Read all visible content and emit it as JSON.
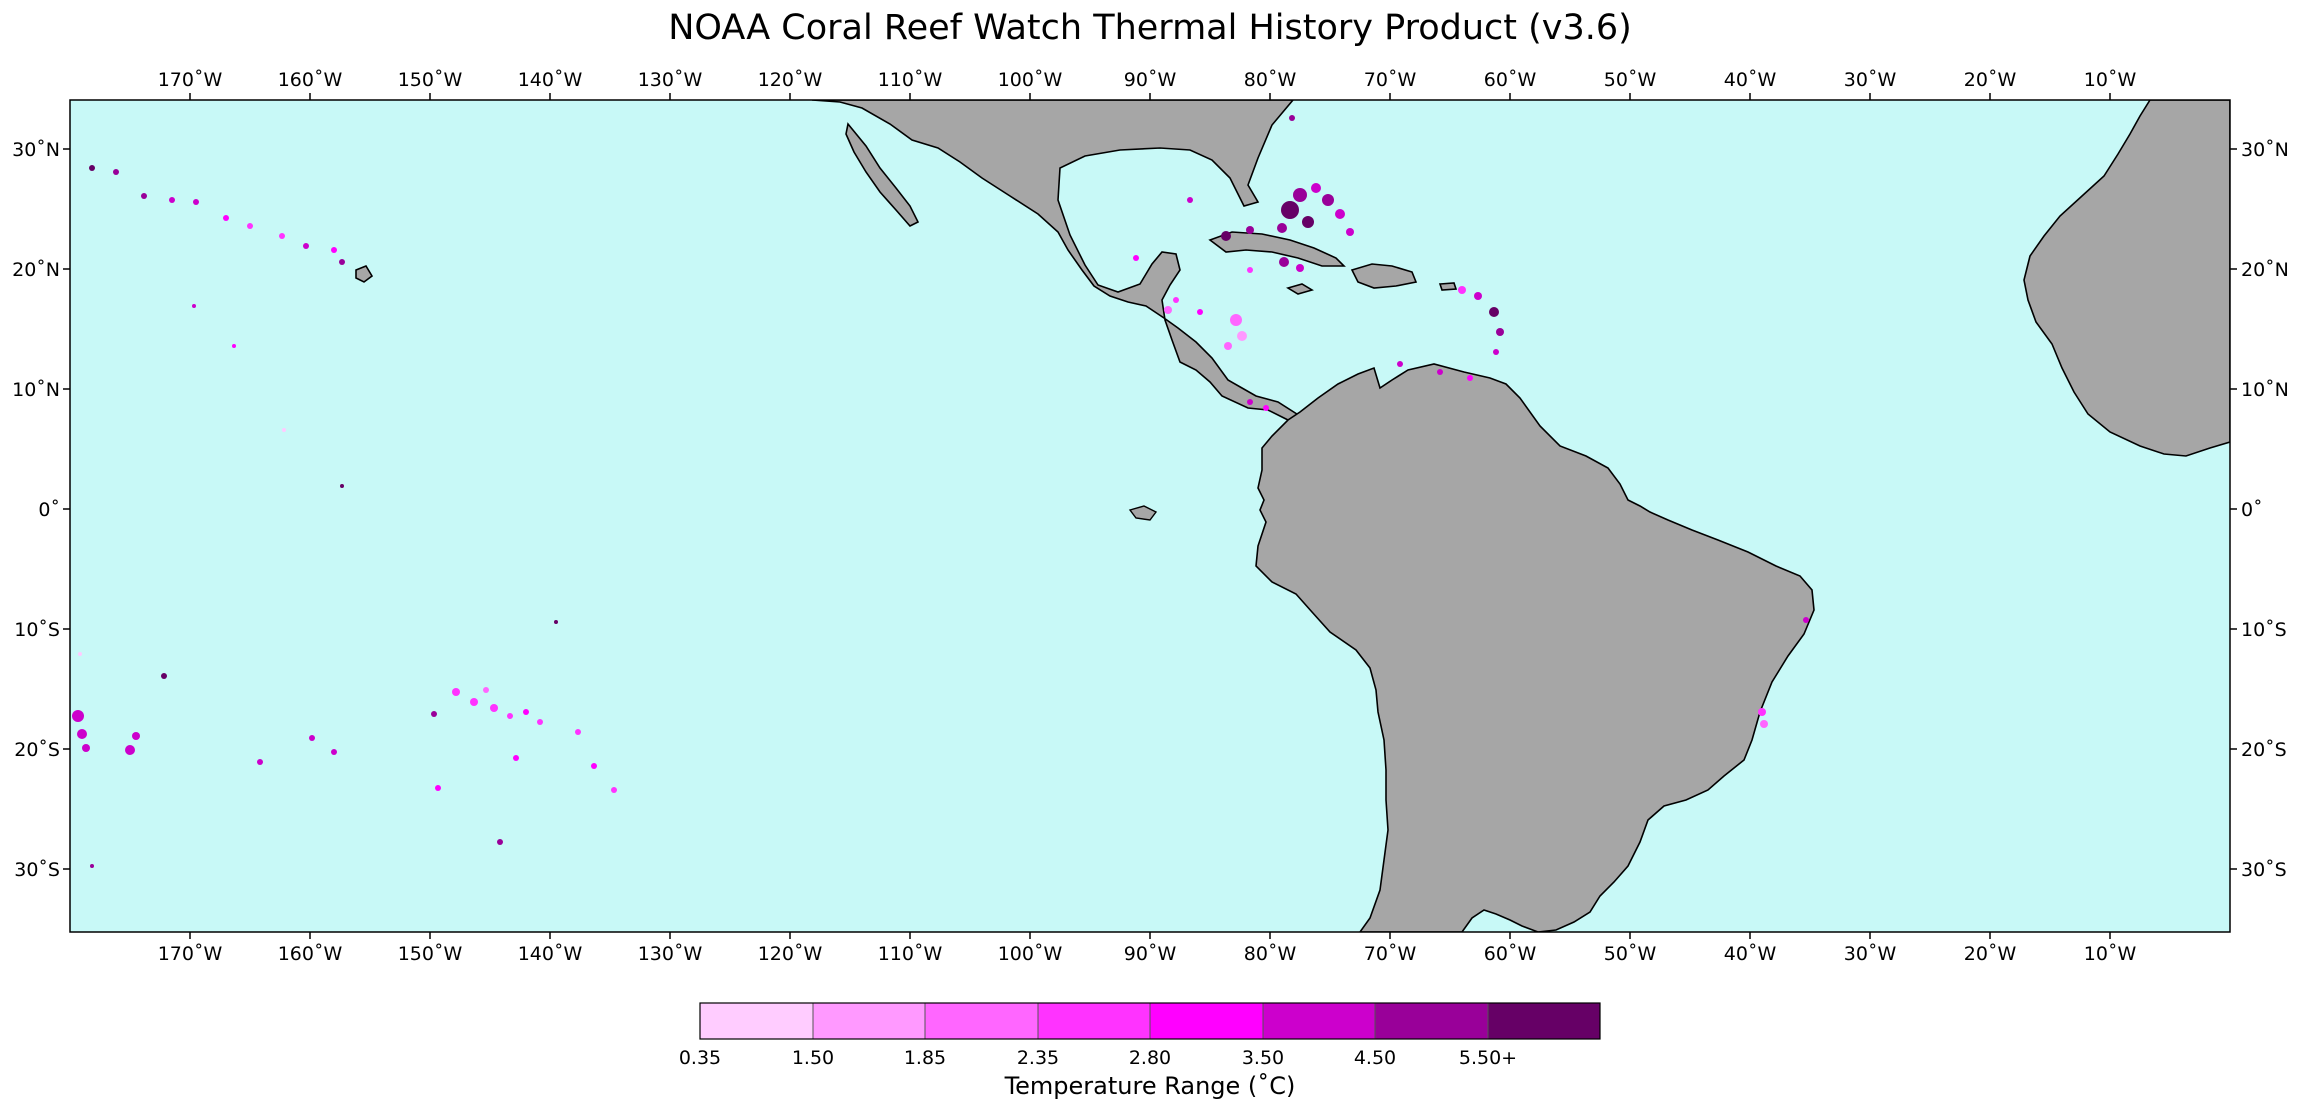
{
  "title": "NOAA Coral Reef Watch Thermal History Product (v3.6)",
  "longitude_ticks": [
    "170˚W",
    "160˚W",
    "150˚W",
    "140˚W",
    "130˚W",
    "120˚W",
    "110˚W",
    "100˚W",
    "90˚W",
    "80˚W",
    "70˚W",
    "60˚W",
    "50˚W",
    "40˚W",
    "30˚W",
    "20˚W",
    "10˚W"
  ],
  "latitude_ticks": [
    "30˚N",
    "20˚N",
    "10˚N",
    "0˚",
    "10˚S",
    "20˚S",
    "30˚S"
  ],
  "colorbar": {
    "title": "Temperature Range (˚C)",
    "labels": [
      "0.35",
      "1.50",
      "1.85",
      "2.35",
      "2.80",
      "3.50",
      "4.50",
      "5.50+"
    ],
    "colors": [
      "#ffccff",
      "#ff99ff",
      "#ff66ff",
      "#ff33ff",
      "#ff00ff",
      "#cc00cc",
      "#990099",
      "#660066"
    ]
  },
  "colors": {
    "ocean": "#c8f9f7",
    "land": "#a6a6a6",
    "coastline": "#000000"
  }
}
